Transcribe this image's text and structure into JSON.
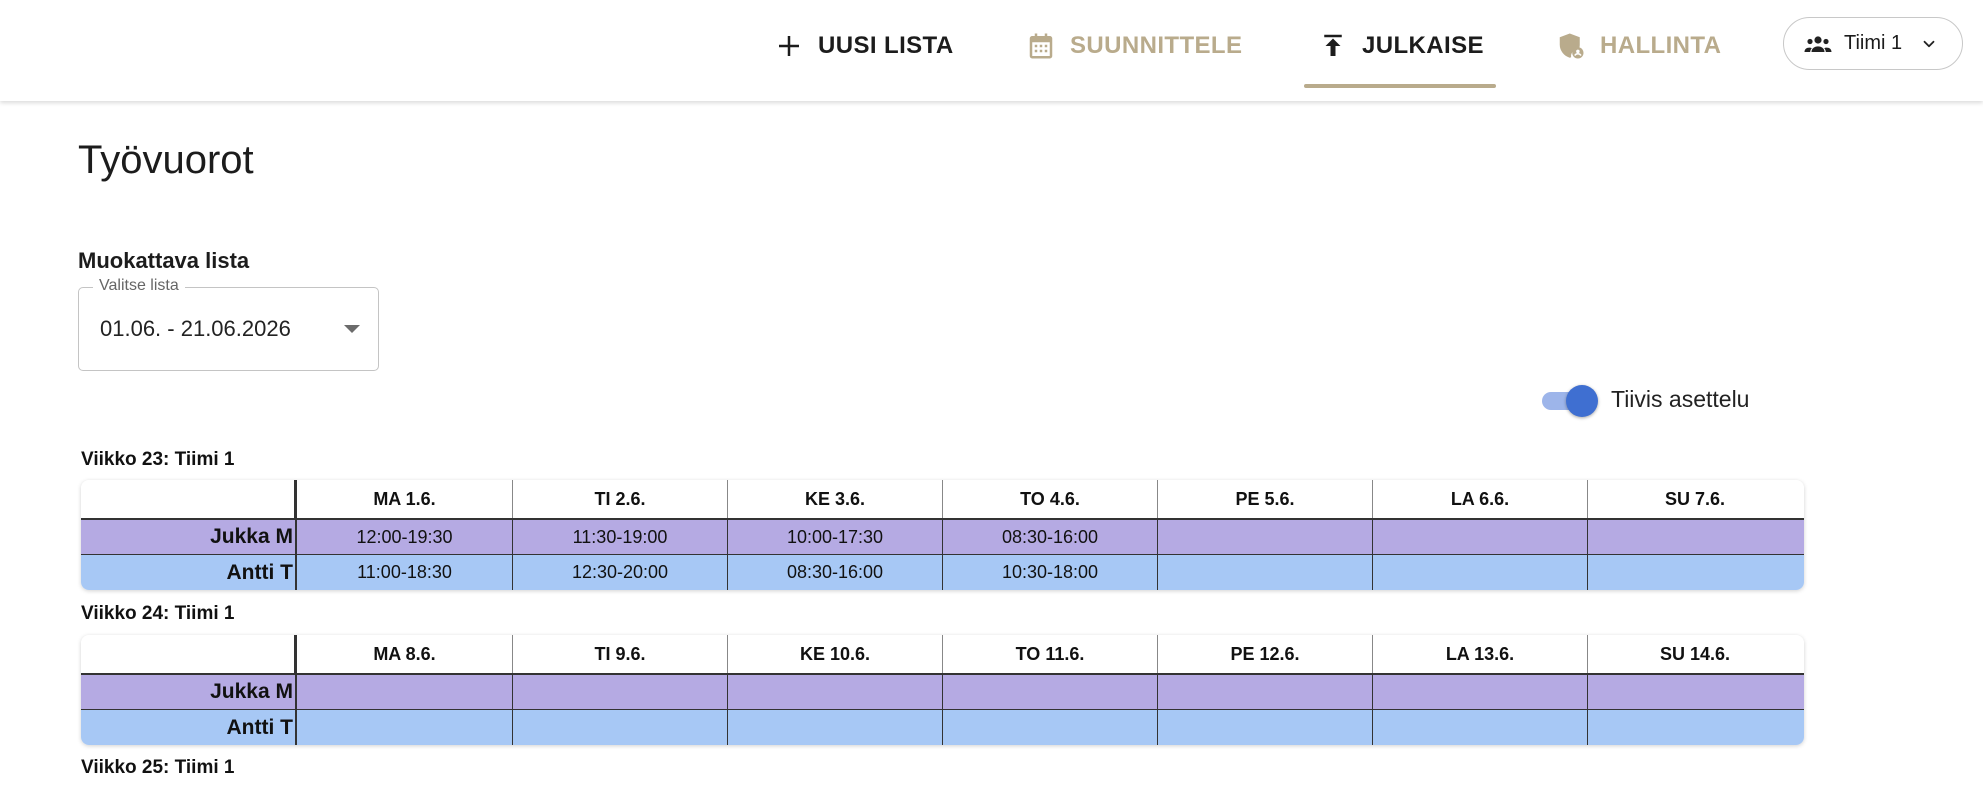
{
  "nav": {
    "new_list": "UUSI LISTA",
    "plan": "SUUNNITTELE",
    "publish": "JULKAISE",
    "admin": "HALLINTA",
    "team_selector": "Tiimi 1"
  },
  "page": {
    "title": "Työvuorot",
    "section_label": "Muokattava lista",
    "select_legend": "Valitse lista",
    "select_value": "01.06. - 21.06.2026",
    "toggle_label": "Tiivis asettelu",
    "toggle_on": true
  },
  "colors": {
    "accent_gold": "#b9ab8c",
    "row_purple": "#b5aae3",
    "row_blue": "#a7c8f5",
    "toggle_blue": "#3f6fd1"
  },
  "weeks": [
    {
      "label": "Viikko 23: Tiimi 1",
      "days": [
        "MA 1.6.",
        "TI 2.6.",
        "KE 3.6.",
        "TO 4.6.",
        "PE 5.6.",
        "LA 6.6.",
        "SU 7.6."
      ],
      "rows": [
        {
          "name": "Jukka M",
          "shifts": [
            "12:00-19:30",
            "11:30-19:00",
            "10:00-17:30",
            "08:30-16:00",
            "",
            "",
            ""
          ]
        },
        {
          "name": "Antti T",
          "shifts": [
            "11:00-18:30",
            "12:30-20:00",
            "08:30-16:00",
            "10:30-18:00",
            "",
            "",
            ""
          ]
        }
      ]
    },
    {
      "label": "Viikko 24: Tiimi 1",
      "days": [
        "MA 8.6.",
        "TI 9.6.",
        "KE 10.6.",
        "TO 11.6.",
        "PE 12.6.",
        "LA 13.6.",
        "SU 14.6."
      ],
      "rows": [
        {
          "name": "Jukka M",
          "shifts": [
            "",
            "",
            "",
            "",
            "",
            "",
            ""
          ]
        },
        {
          "name": "Antti T",
          "shifts": [
            "",
            "",
            "",
            "",
            "",
            "",
            ""
          ]
        }
      ]
    },
    {
      "label": "Viikko 25: Tiimi 1"
    }
  ]
}
